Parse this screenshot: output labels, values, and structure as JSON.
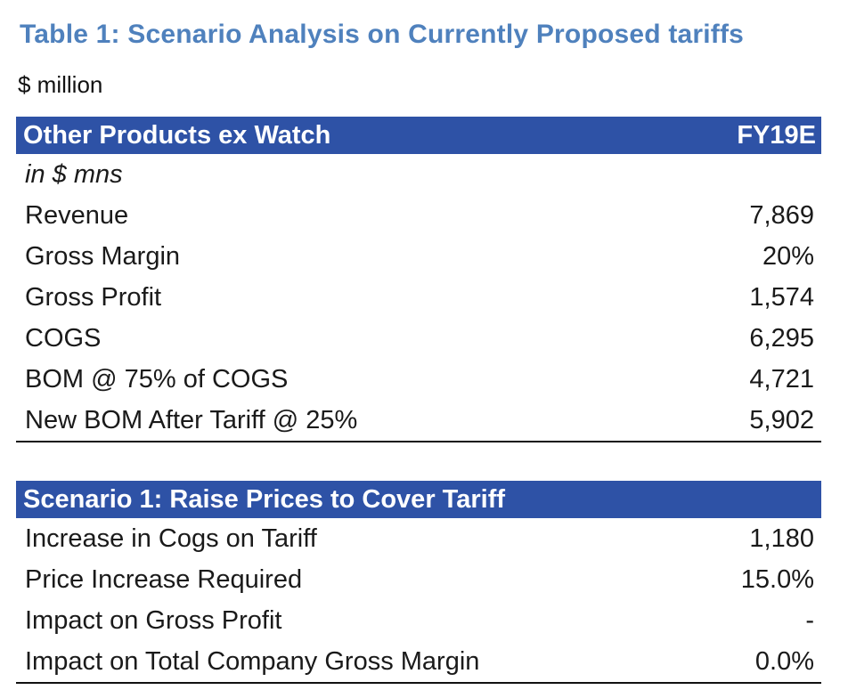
{
  "document": {
    "title": "Table 1: Scenario Analysis on Currently Proposed tariffs",
    "subtitle": "$ million"
  },
  "table1": {
    "header": {
      "label": "Other Products ex Watch",
      "column": "FY19E"
    },
    "units_label": "in $ mns",
    "rows": [
      {
        "label": "Revenue",
        "value": "7,869"
      },
      {
        "label": "Gross Margin",
        "value": "20%"
      },
      {
        "label": "Gross Profit",
        "value": "1,574"
      },
      {
        "label": "COGS",
        "value": "6,295"
      },
      {
        "label": "BOM @ 75% of COGS",
        "value": "4,721"
      },
      {
        "label": "New BOM After Tariff @ 25%",
        "value": "5,902"
      }
    ]
  },
  "table2": {
    "header": {
      "label": "Scenario 1: Raise Prices to Cover Tariff"
    },
    "rows": [
      {
        "label": "Increase in Cogs on Tariff",
        "value": "1,180"
      },
      {
        "label": "Price Increase Required",
        "value": "15.0%"
      },
      {
        "label": "Impact on Gross Profit",
        "value": "-"
      },
      {
        "label": "Impact on Total Company Gross Margin",
        "value": "0.0%"
      }
    ]
  },
  "colors": {
    "title": "#4f81bd",
    "header_background": "#2e52a6",
    "header_text": "#ffffff"
  }
}
